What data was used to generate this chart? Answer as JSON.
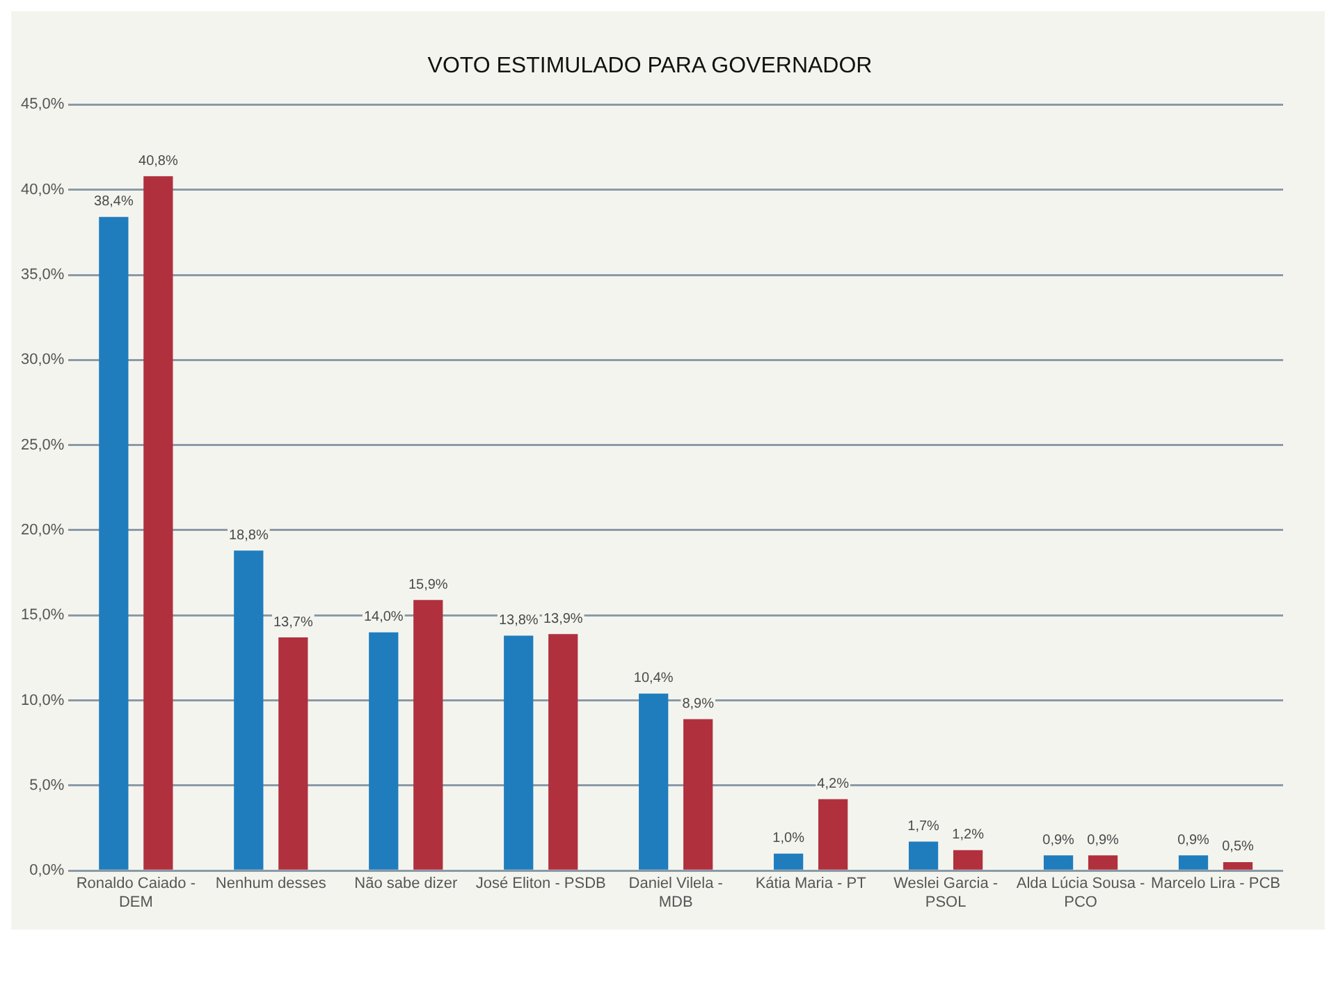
{
  "chart_data": {
    "type": "bar",
    "title": "VOTO ESTIMULADO PARA GOVERNADOR",
    "categories": [
      "Ronaldo Caiado - DEM",
      "Nenhum desses",
      "Não sabe dizer",
      "José Eliton - PSDB",
      "Daniel Vilela - MDB",
      "Kátia Maria - PT",
      "Weslei Garcia - PSOL",
      "Alda Lúcia Sousa - PCO",
      "Marcelo Lira - PCB"
    ],
    "series": [
      {
        "color": "#1f7dbd",
        "values": [
          38.4,
          18.8,
          14.0,
          13.8,
          10.4,
          1.0,
          1.7,
          0.9,
          0.9
        ],
        "value_labels": [
          "38,4%",
          "18,8%",
          "14,0%",
          "13,8%",
          "10,4%",
          "1,0%",
          "1,7%",
          "0,9%",
          "0,9%"
        ]
      },
      {
        "color": "#b0303e",
        "values": [
          40.8,
          13.7,
          15.9,
          13.9,
          8.9,
          4.2,
          1.2,
          0.9,
          0.5
        ],
        "value_labels": [
          "40,8%",
          "13,7%",
          "15,9%",
          "13,9%",
          "8,9%",
          "4,2%",
          "1,2%",
          "0,9%",
          "0,5%"
        ]
      }
    ],
    "ylim": [
      0,
      45
    ],
    "yticks": [
      {
        "value": 0,
        "label": "0,0%"
      },
      {
        "value": 5,
        "label": "5,0%"
      },
      {
        "value": 10,
        "label": "10,0%"
      },
      {
        "value": 15,
        "label": "15,0%"
      },
      {
        "value": 20,
        "label": "20,0%"
      },
      {
        "value": 25,
        "label": "25,0%"
      },
      {
        "value": 30,
        "label": "30,0%"
      },
      {
        "value": 35,
        "label": "35,0%"
      },
      {
        "value": 40,
        "label": "40,0%"
      },
      {
        "value": 45,
        "label": "45,0%"
      }
    ],
    "grid": "y",
    "legend": false
  }
}
